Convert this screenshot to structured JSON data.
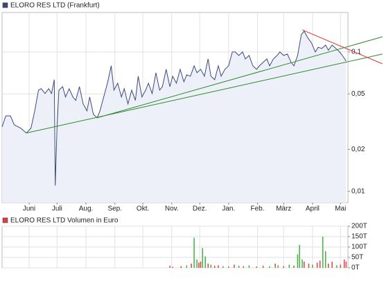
{
  "chart_data": [
    {
      "type": "line",
      "yscale": "log",
      "grid": true,
      "legend": "top-left",
      "xlim": [
        -29,
        342
      ],
      "ylim": [
        0.0083,
        0.192
      ],
      "xticks": [
        {
          "value": 0,
          "label": "Juni"
        },
        {
          "value": 30,
          "label": "Juli"
        },
        {
          "value": 61,
          "label": "Aug."
        },
        {
          "value": 92,
          "label": "Sep."
        },
        {
          "value": 122,
          "label": "Okt."
        },
        {
          "value": 153,
          "label": "Nov."
        },
        {
          "value": 183,
          "label": "Dez."
        },
        {
          "value": 214,
          "label": "Jan."
        },
        {
          "value": 245,
          "label": "Feb."
        },
        {
          "value": 273,
          "label": "März"
        },
        {
          "value": 304,
          "label": "April"
        },
        {
          "value": 334,
          "label": "Mai"
        }
      ],
      "yticks": [
        {
          "value": 0.1,
          "label": "0,1"
        },
        {
          "value": 0.05,
          "label": "0,05"
        },
        {
          "value": 0.02,
          "label": "0,02"
        },
        {
          "value": 0.01,
          "label": "0,01"
        }
      ],
      "series": [
        {
          "name": "ELORO RES LTD (Frankfurt)",
          "color": "#3c4a78",
          "fill": "#eef0f9",
          "x": [
            -29,
            -25,
            -20,
            -16,
            -9,
            -3,
            2,
            6,
            10,
            13,
            17,
            21,
            24,
            27,
            28,
            30,
            32,
            36,
            39,
            43,
            47,
            50,
            54,
            58,
            62,
            65,
            69,
            73,
            76,
            80,
            84,
            88,
            91,
            95,
            99,
            102,
            106,
            110,
            114,
            117,
            121,
            125,
            128,
            132,
            136,
            140,
            143,
            147,
            151,
            154,
            158,
            162,
            166,
            169,
            173,
            177,
            180,
            184,
            188,
            192,
            195,
            199,
            203,
            206,
            210,
            214,
            218,
            221,
            225,
            229,
            232,
            236,
            240,
            244,
            247,
            251,
            255,
            258,
            262,
            266,
            269,
            273,
            277,
            281,
            284,
            288,
            292,
            295,
            299,
            303,
            307,
            310,
            314,
            318,
            321,
            325,
            329,
            333,
            336,
            340
          ],
          "values": [
            0.029,
            0.0348,
            0.0348,
            0.03,
            0.0284,
            0.0262,
            0.0284,
            0.0378,
            0.0532,
            0.0545,
            0.0503,
            0.0545,
            0.0503,
            0.0633,
            0.011,
            0.03,
            0.0532,
            0.0564,
            0.0475,
            0.0545,
            0.0475,
            0.0449,
            0.0564,
            0.0424,
            0.0378,
            0.0475,
            0.0356,
            0.0337,
            0.0378,
            0.0475,
            0.0597,
            0.0795,
            0.0532,
            0.0597,
            0.0475,
            0.0545,
            0.0424,
            0.0532,
            0.0449,
            0.067,
            0.0475,
            0.0532,
            0.0597,
            0.0503,
            0.071,
            0.0532,
            0.0564,
            0.0751,
            0.0564,
            0.067,
            0.0597,
            0.0751,
            0.0611,
            0.0685,
            0.067,
            0.0795,
            0.071,
            0.0751,
            0.067,
            0.0892,
            0.067,
            0.0633,
            0.0795,
            0.067,
            0.0751,
            0.0795,
            0.1,
            0.1,
            0.0944,
            0.1,
            0.0892,
            0.0944,
            0.0795,
            0.0751,
            0.0795,
            0.0842,
            0.0892,
            0.0795,
            0.0892,
            0.0944,
            0.1,
            0.0944,
            0.0966,
            0.0842,
            0.0795,
            0.0944,
            0.133,
            0.141,
            0.126,
            0.116,
            0.1,
            0.108,
            0.106,
            0.112,
            0.103,
            0.112,
            0.106,
            0.1,
            0.0944,
            0.0861
          ]
        }
      ],
      "trendlines": [
        {
          "color": "#2a8a2a",
          "x": [
            -3,
            379
          ],
          "values": [
            0.0262,
            0.0966
          ]
        },
        {
          "color": "#2a8a2a",
          "x": [
            73,
            379
          ],
          "values": [
            0.0337,
            0.1285
          ]
        },
        {
          "color": "#e03030",
          "x": [
            293,
            379
          ],
          "values": [
            0.144,
            0.0822
          ]
        }
      ]
    },
    {
      "type": "volume",
      "grid": true,
      "legend": "top-left",
      "xlim": [
        -29,
        342
      ],
      "ylim": [
        0,
        200000
      ],
      "yticks": [
        {
          "value": 200000,
          "label": "200T"
        },
        {
          "value": 150000,
          "label": "150T"
        },
        {
          "value": 100000,
          "label": "100T"
        },
        {
          "value": 50000,
          "label": "50T"
        },
        {
          "value": 0,
          "label": "0T"
        }
      ],
      "series": [
        {
          "name": "ELORO RES LTD Volumen in Euro",
          "color": "#d94040",
          "x": [
            151,
            154,
            163,
            169,
            174,
            177,
            180,
            182,
            184,
            186,
            189,
            192,
            195,
            199,
            203,
            208,
            214,
            220,
            225,
            230,
            236,
            244,
            251,
            258,
            264,
            267,
            273,
            279,
            284,
            288,
            290,
            293,
            295,
            300,
            304,
            309,
            312,
            315,
            318,
            321,
            325,
            330,
            334,
            338,
            340
          ],
          "values": [
            10000,
            5000,
            8000,
            12000,
            20000,
            145000,
            40000,
            25000,
            30000,
            95000,
            55000,
            20000,
            15000,
            10000,
            12000,
            8000,
            6000,
            15000,
            10000,
            8000,
            12000,
            6000,
            10000,
            8000,
            20000,
            12000,
            8000,
            15000,
            10000,
            65000,
            110000,
            40000,
            30000,
            20000,
            15000,
            25000,
            35000,
            150000,
            80000,
            20000,
            30000,
            12000,
            15000,
            40000,
            30000
          ],
          "colors": [
            "#e04040",
            "#e04040",
            "#e04040",
            "#40b040",
            "#e04040",
            "#40b040",
            "#40b040",
            "#e04040",
            "#e04040",
            "#40b040",
            "#40b040",
            "#e04040",
            "#40b040",
            "#e04040",
            "#e04040",
            "#40b040",
            "#e04040",
            "#e04040",
            "#40b040",
            "#e04040",
            "#40b040",
            "#e04040",
            "#e04040",
            "#40b040",
            "#e04040",
            "#40b040",
            "#e04040",
            "#40b040",
            "#e04040",
            "#40b040",
            "#40b040",
            "#40b040",
            "#e04040",
            "#e04040",
            "#40b040",
            "#e04040",
            "#e04040",
            "#40b040",
            "#40b040",
            "#e04040",
            "#e04040",
            "#40b040",
            "#e04040",
            "#e04040",
            "#e04040"
          ]
        }
      ]
    }
  ]
}
